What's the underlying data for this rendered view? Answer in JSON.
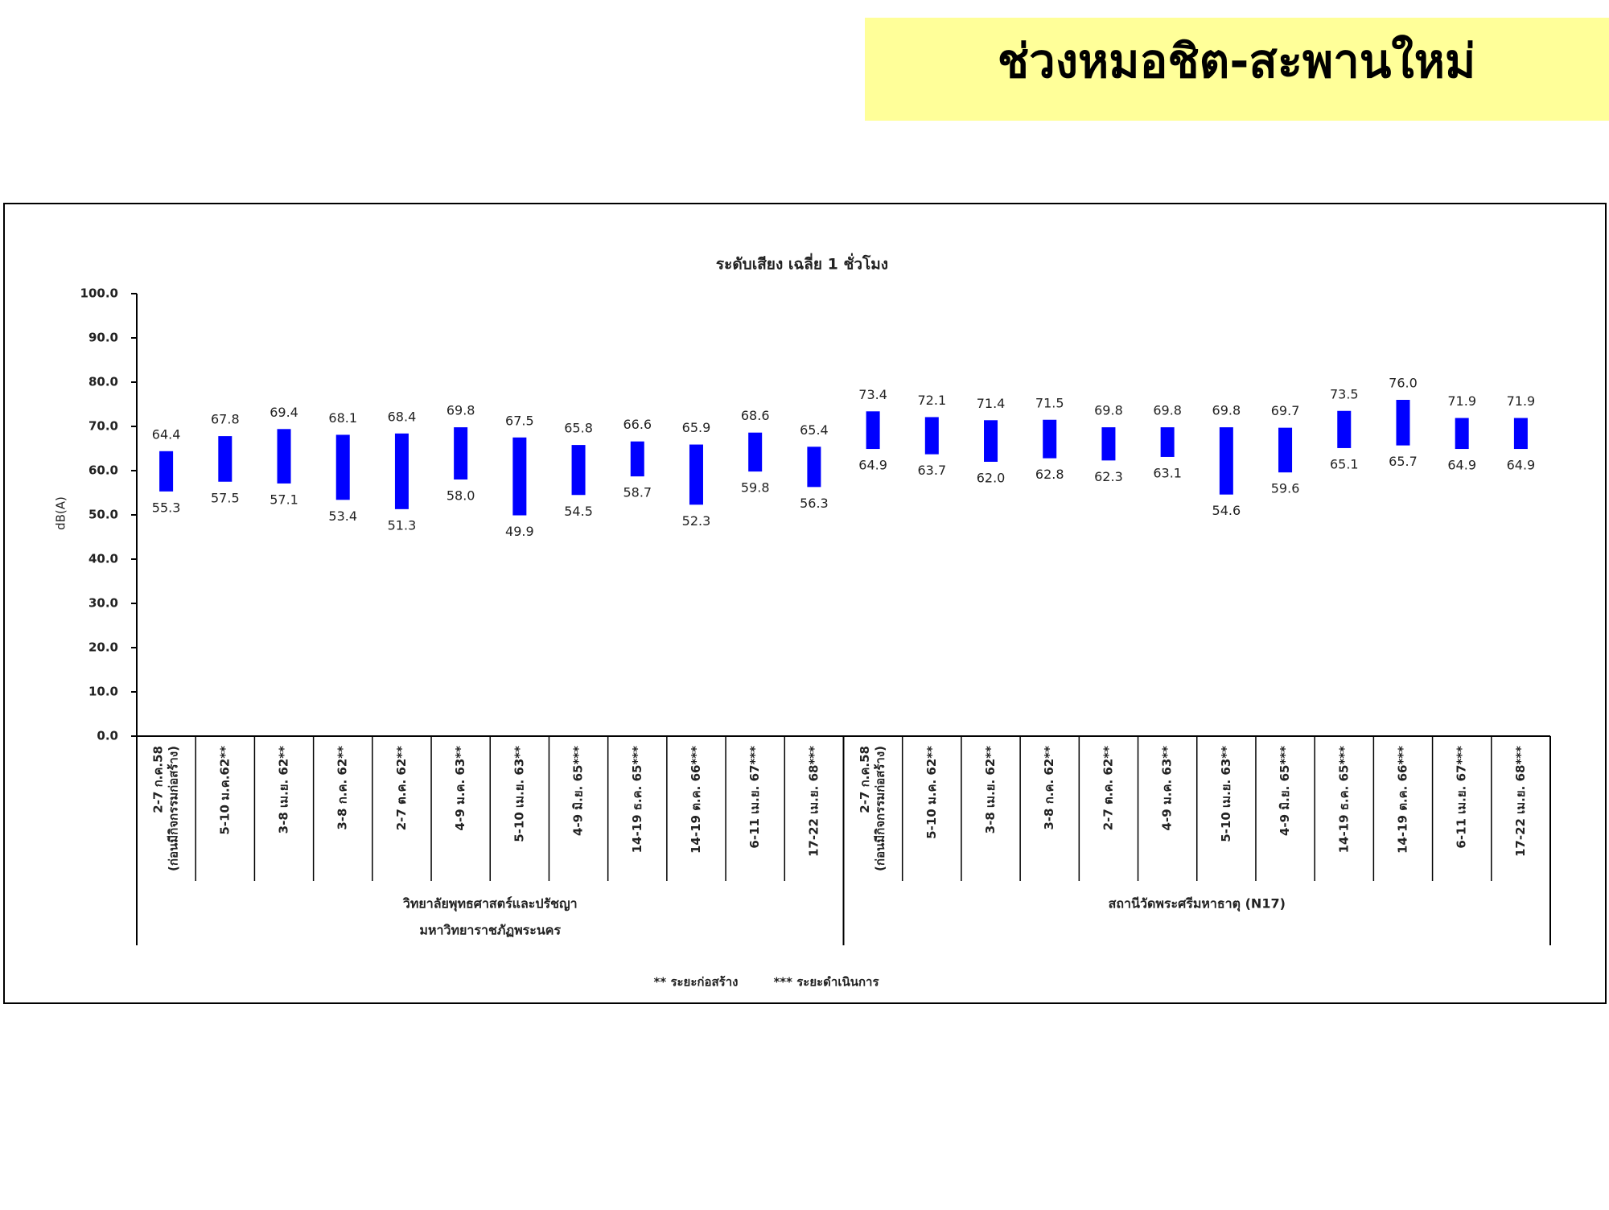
{
  "page_title": "ช่วงหมอชิต-สะพานใหม่",
  "chart_data": {
    "type": "range-bar",
    "title": "ระดับเสียง เฉลี่ย 1 ชั่วโมง",
    "y_label": "dB(A)",
    "color": "#0000ff",
    "ylim": [
      0,
      100
    ],
    "yticks": [
      {
        "value": 0,
        "label": "0.0"
      },
      {
        "value": 10,
        "label": "10.0"
      },
      {
        "value": 20,
        "label": "20.0"
      },
      {
        "value": 30,
        "label": "30.0"
      },
      {
        "value": 40,
        "label": "40.0"
      },
      {
        "value": 50,
        "label": "50.0"
      },
      {
        "value": 60,
        "label": "60.0"
      },
      {
        "value": 70,
        "label": "70.0"
      },
      {
        "value": 80,
        "label": "80.0"
      },
      {
        "value": 90,
        "label": "90.0"
      },
      {
        "value": 100,
        "label": "100.0"
      }
    ],
    "groups": [
      {
        "label": [
          "วิทยาลัยพุทธศาสตร์และปรัชญา",
          "มหาวิทยาราชภัฏพระนคร"
        ],
        "categories": [
          [
            "2-7 ก.ค.58",
            "(ก่อนมีกิจกรรมก่อสร้าง)"
          ],
          "5-10 ม.ค.62**",
          "3-8 เม.ย. 62**",
          "3-8 ก.ค. 62**",
          "2-7 ต.ค. 62**",
          "4-9 ม.ค. 63**",
          "5-10 เม.ย. 63**",
          "4-9 มิ.ย. 65***",
          "14-19 ธ.ค. 65***",
          "14-19 ต.ค. 66***",
          "6-11 เม.ย. 67***",
          "17-22 เม.ย. 68***"
        ],
        "high": [
          64.4,
          67.8,
          69.4,
          68.1,
          68.4,
          69.8,
          67.5,
          65.8,
          66.6,
          65.9,
          68.6,
          65.4
        ],
        "low": [
          55.3,
          57.5,
          57.1,
          53.4,
          51.3,
          58.0,
          49.9,
          54.5,
          58.7,
          52.3,
          59.8,
          56.3
        ],
        "high_value_labels": [
          "64.4",
          "67.8",
          "69.4",
          "68.1",
          "68.4",
          "69.8",
          "67.5",
          "65.8",
          "66.6",
          "65.9",
          "68.6",
          "65.4"
        ],
        "low_value_labels": [
          "55.3",
          "57.5",
          "57.1",
          "53.4",
          "51.3",
          "58.0",
          "49.9",
          "54.5",
          "58.7",
          "52.3",
          "59.8",
          "56.3"
        ]
      },
      {
        "label": [
          "สถานีวัดพระศรีมหาธาตุ (N17)"
        ],
        "categories": [
          [
            "2-7 ก.ค.58",
            "(ก่อนมีกิจกรรมก่อสร้าง)"
          ],
          "5-10 ม.ค. 62**",
          "3-8 เม.ย. 62**",
          "3-8 ก.ค. 62**",
          "2-7 ต.ค. 62**",
          "4-9 ม.ค. 63**",
          "5-10 เม.ย. 63**",
          "4-9 มิ.ย. 65***",
          "14-19 ธ.ค. 65***",
          "14-19 ต.ค. 66***",
          "6-11 เม.ย. 67***",
          "17-22 เม.ย. 68***"
        ],
        "high": [
          73.4,
          72.1,
          71.4,
          71.5,
          69.8,
          69.8,
          69.8,
          69.7,
          73.5,
          76.0,
          71.9,
          71.9
        ],
        "low": [
          64.9,
          63.7,
          62.0,
          62.8,
          62.3,
          63.1,
          54.6,
          59.6,
          65.1,
          65.7,
          64.9,
          64.9
        ],
        "high_value_labels": [
          "73.4",
          "72.1",
          "71.4",
          "71.5",
          "69.8",
          "69.8",
          "69.8",
          "69.7",
          "73.5",
          "76.0",
          "71.9",
          "71.9"
        ],
        "low_value_labels": [
          "64.9",
          "63.7",
          "62.0",
          "62.8",
          "62.3",
          "63.1",
          "54.6",
          "59.6",
          "65.1",
          "65.7",
          "64.9",
          "64.9"
        ]
      }
    ],
    "footnotes": [
      "** ระยะก่อสร้าง",
      "*** ระยะดำเนินการ"
    ]
  }
}
